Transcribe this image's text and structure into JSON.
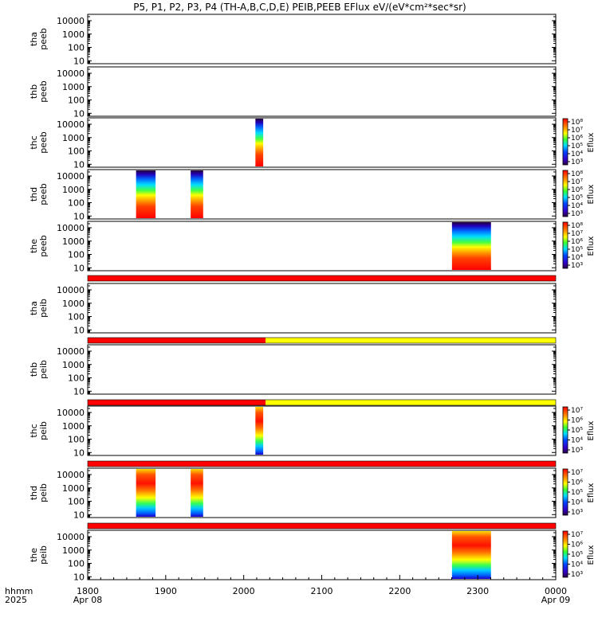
{
  "figure": {
    "title": "P5, P1, P2, P3, P4 (TH-A,B,C,D,E) PEIB,PEEB EFlux eV/(eV*cm²*sec*sr)",
    "time_axis_label_1": "hhmm",
    "time_axis_label_2": "2025"
  },
  "colors": {
    "red_bar": "#ff0000",
    "yellow_bar": "#ffff00",
    "frame": "#000000"
  },
  "chart_data": {
    "type": "heatmap",
    "x": {
      "range": [
        "18:00",
        "00:00"
      ],
      "tick_values": [
        18,
        19,
        20,
        21,
        22,
        23,
        24
      ],
      "tick_labels": [
        "1800",
        "1900",
        "2000",
        "2100",
        "2200",
        "2300",
        "0000"
      ],
      "date_labels": [
        {
          "at": 18,
          "text": "Apr 08"
        },
        {
          "at": 24,
          "text": "Apr 09"
        }
      ]
    },
    "y": {
      "scale": "log",
      "range": [
        6,
        30000
      ],
      "tick_values": [
        10,
        100,
        1000,
        10000
      ],
      "tick_labels": [
        "10",
        "100",
        "1000",
        "10000"
      ]
    },
    "panels": [
      {
        "probe": "tha",
        "species": "peeb",
        "intervals": []
      },
      {
        "probe": "thb",
        "species": "peeb",
        "intervals": []
      },
      {
        "probe": "thc",
        "species": "peeb",
        "intervals": [
          [
            20.15,
            20.25
          ]
        ],
        "colorbar": {
          "label": "Eflux",
          "ticks": [
            "10³",
            "10⁴",
            "10⁵",
            "10⁶",
            "10⁷",
            "10⁸"
          ]
        }
      },
      {
        "probe": "thd",
        "species": "peeb",
        "intervals": [
          [
            18.62,
            18.87
          ],
          [
            19.32,
            19.48
          ]
        ],
        "colorbar": {
          "label": "Eflux",
          "ticks": [
            "10³",
            "10⁴",
            "10⁵",
            "10⁶",
            "10⁷",
            "10⁸"
          ]
        }
      },
      {
        "probe": "the",
        "species": "peeb",
        "intervals": [
          [
            22.67,
            23.17
          ]
        ],
        "colorbar": {
          "label": "Eflux",
          "ticks": [
            "10³",
            "10⁴",
            "10⁵",
            "10⁶",
            "10⁷",
            "10⁸"
          ]
        }
      },
      {
        "probe": "tha",
        "species": "peib",
        "intervals": []
      },
      {
        "probe": "thb",
        "species": "peib",
        "intervals": []
      },
      {
        "probe": "thc",
        "species": "peib",
        "intervals": [
          [
            20.15,
            20.25
          ]
        ],
        "colorbar": {
          "label": "Eflux",
          "ticks": [
            "10³",
            "10⁴",
            "10⁵",
            "10⁶",
            "10⁷"
          ]
        }
      },
      {
        "probe": "thd",
        "species": "peib",
        "intervals": [
          [
            18.62,
            18.87
          ],
          [
            19.32,
            19.48
          ]
        ],
        "colorbar": {
          "label": "Eflux",
          "ticks": [
            "10³",
            "10⁴",
            "10⁵",
            "10⁶",
            "10⁷"
          ]
        }
      },
      {
        "probe": "the",
        "species": "peib",
        "intervals": [
          [
            22.67,
            23.17
          ]
        ],
        "colorbar": {
          "label": "Eflux",
          "ticks": [
            "10³",
            "10⁴",
            "10⁵",
            "10⁶",
            "10⁷"
          ]
        }
      }
    ],
    "mode_bars": [
      {
        "after_panel": 4,
        "segments": [
          {
            "from": 18,
            "to": 24,
            "color": "red"
          }
        ]
      },
      {
        "after_panel": 5,
        "segments": [
          {
            "from": 18,
            "to": 20.28,
            "color": "red"
          },
          {
            "from": 20.28,
            "to": 24,
            "color": "yellow"
          }
        ]
      },
      {
        "after_panel": 6,
        "segments": [
          {
            "from": 18,
            "to": 20.28,
            "color": "red"
          },
          {
            "from": 20.28,
            "to": 24,
            "color": "yellow"
          }
        ]
      },
      {
        "after_panel": 7,
        "segments": [
          {
            "from": 18,
            "to": 24,
            "color": "red"
          }
        ]
      },
      {
        "after_panel": 8,
        "segments": [
          {
            "from": 18,
            "to": 24,
            "color": "red"
          }
        ]
      }
    ]
  }
}
